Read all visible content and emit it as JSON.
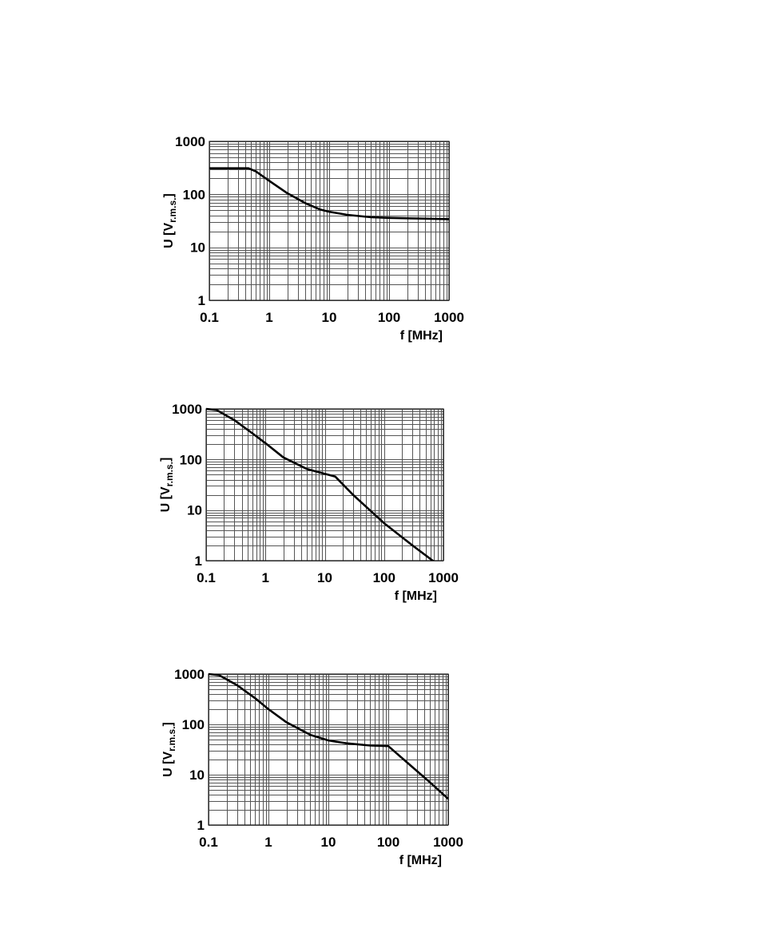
{
  "chart_data": [
    {
      "type": "line",
      "xlabel": "f [MHz]",
      "ylabel_main": "U [V",
      "ylabel_sub": "r.m.s.",
      "ylabel_close": "]",
      "xscale": "log",
      "yscale": "log",
      "xlim": [
        0.1,
        1000
      ],
      "ylim": [
        1,
        1000
      ],
      "grid": true,
      "x_ticks": [
        "0.1",
        "1",
        "10",
        "100",
        "1000"
      ],
      "y_ticks": [
        "1",
        "10",
        "100",
        "1000"
      ],
      "series": [
        {
          "x": [
            0.1,
            0.45,
            0.6,
            1,
            2,
            4,
            7,
            10,
            20,
            50,
            100,
            300,
            1000
          ],
          "y": [
            310,
            310,
            270,
            180,
            105,
            68,
            52,
            47,
            41,
            37,
            36,
            35,
            34
          ]
        }
      ]
    },
    {
      "type": "line",
      "xlabel": "f [MHz]",
      "ylabel_main": "U [V",
      "ylabel_sub": "r.m.s.",
      "ylabel_close": "]",
      "xscale": "log",
      "yscale": "log",
      "xlim": [
        0.1,
        1000
      ],
      "ylim": [
        1,
        1000
      ],
      "grid": true,
      "x_ticks": [
        "0.1",
        "1",
        "10",
        "100",
        "1000"
      ],
      "y_ticks": [
        "1",
        "10",
        "100",
        "1000"
      ],
      "series": [
        {
          "x": [
            0.1,
            0.15,
            0.3,
            0.6,
            1,
            2,
            5,
            10,
            15,
            30,
            100,
            300,
            700
          ],
          "y": [
            1000,
            950,
            600,
            330,
            210,
            110,
            65,
            52,
            46,
            20,
            5.5,
            2,
            0.95
          ]
        }
      ]
    },
    {
      "type": "line",
      "xlabel": "f [MHz]",
      "ylabel_main": "U [V",
      "ylabel_sub": "r.m.s.",
      "ylabel_close": "]",
      "xscale": "log",
      "yscale": "log",
      "xlim": [
        0.1,
        1000
      ],
      "ylim": [
        1,
        1000
      ],
      "grid": true,
      "x_ticks": [
        "0.1",
        "1",
        "10",
        "100",
        "1000"
      ],
      "y_ticks": [
        "1",
        "10",
        "100",
        "1000"
      ],
      "series": [
        {
          "x": [
            0.1,
            0.15,
            0.3,
            0.6,
            1,
            2,
            5,
            10,
            20,
            50,
            100,
            200,
            500,
            1000
          ],
          "y": [
            1000,
            950,
            600,
            330,
            200,
            110,
            62,
            48,
            42,
            38,
            37,
            18,
            7,
            3.3
          ]
        }
      ]
    }
  ]
}
